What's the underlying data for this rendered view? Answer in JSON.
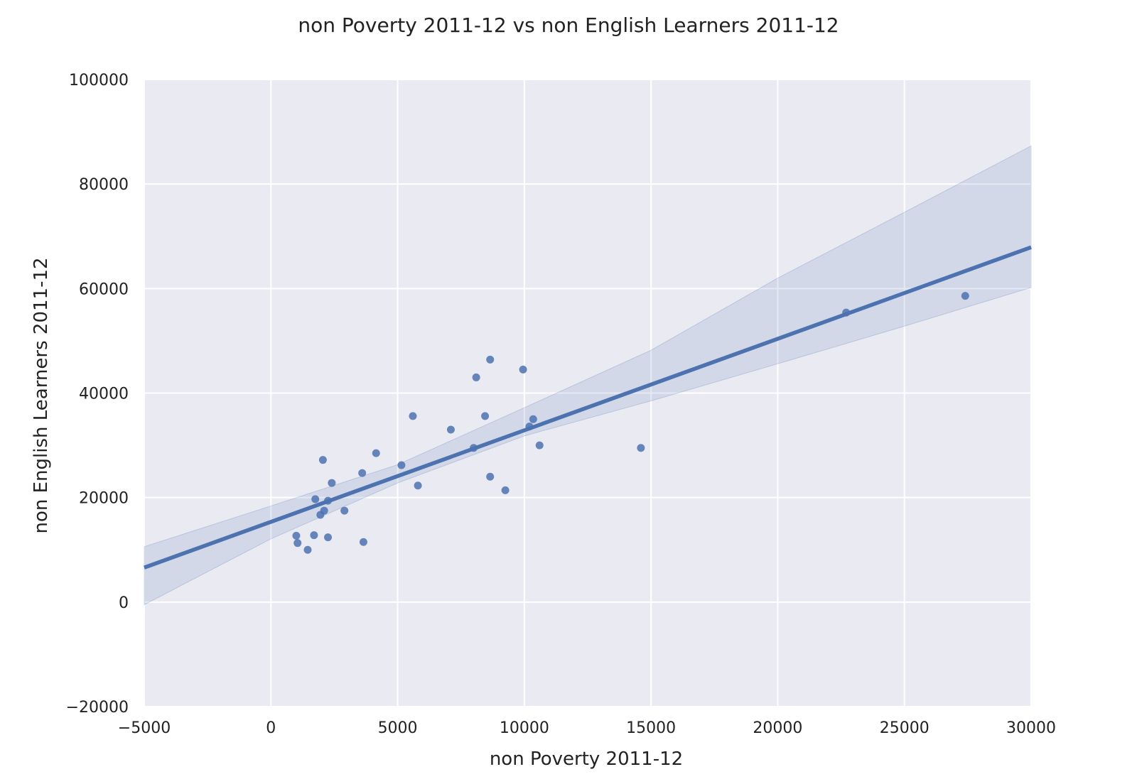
{
  "chart_data": {
    "type": "scatter",
    "title": "non Poverty 2011-12 vs non English Learners 2011-12",
    "xlabel": "non Poverty 2011-12",
    "ylabel": "non English Learners 2011-12",
    "xlim": [
      -5000,
      30000
    ],
    "ylim": [
      -20000,
      100000
    ],
    "xticks": [
      -5000,
      0,
      5000,
      10000,
      15000,
      20000,
      25000,
      30000
    ],
    "yticks": [
      -20000,
      0,
      20000,
      40000,
      60000,
      80000,
      100000
    ],
    "xtick_labels": [
      "−5000",
      "0",
      "5000",
      "10000",
      "15000",
      "20000",
      "25000",
      "30000"
    ],
    "ytick_labels": [
      "−20000",
      "0",
      "20000",
      "40000",
      "60000",
      "80000",
      "100000"
    ],
    "grid": true,
    "legend": "none",
    "colors": {
      "background": "#eaeaf2",
      "grid": "#ffffff",
      "points": "#4c72b0",
      "line": "#4c72b0",
      "band": "#4c72b0"
    },
    "points": [
      {
        "x": 1000,
        "y": 12700
      },
      {
        "x": 1050,
        "y": 11300
      },
      {
        "x": 1450,
        "y": 10000
      },
      {
        "x": 1700,
        "y": 12800
      },
      {
        "x": 1750,
        "y": 19700
      },
      {
        "x": 1950,
        "y": 16700
      },
      {
        "x": 2050,
        "y": 27200
      },
      {
        "x": 2100,
        "y": 17500
      },
      {
        "x": 2250,
        "y": 19400
      },
      {
        "x": 2250,
        "y": 12400
      },
      {
        "x": 2400,
        "y": 22800
      },
      {
        "x": 2900,
        "y": 17500
      },
      {
        "x": 3600,
        "y": 24700
      },
      {
        "x": 3650,
        "y": 11500
      },
      {
        "x": 4150,
        "y": 28500
      },
      {
        "x": 5150,
        "y": 26200
      },
      {
        "x": 5600,
        "y": 35600
      },
      {
        "x": 5800,
        "y": 22300
      },
      {
        "x": 7100,
        "y": 33000
      },
      {
        "x": 8000,
        "y": 29500
      },
      {
        "x": 8100,
        "y": 43000
      },
      {
        "x": 8450,
        "y": 35600
      },
      {
        "x": 8650,
        "y": 46400
      },
      {
        "x": 8650,
        "y": 24000
      },
      {
        "x": 9250,
        "y": 21400
      },
      {
        "x": 9950,
        "y": 44500
      },
      {
        "x": 10200,
        "y": 33600
      },
      {
        "x": 10350,
        "y": 35000
      },
      {
        "x": 10600,
        "y": 30000
      },
      {
        "x": 14600,
        "y": 29500
      },
      {
        "x": 22700,
        "y": 55400
      },
      {
        "x": 27400,
        "y": 58600
      }
    ],
    "regression": {
      "x": [
        -5000,
        30000
      ],
      "y": [
        6600,
        67900
      ]
    },
    "confidence_band": {
      "x": [
        -5000,
        0,
        5000,
        10000,
        15000,
        20000,
        25000,
        30000
      ],
      "lower": [
        -500,
        12100,
        22800,
        31800,
        38500,
        45600,
        52800,
        60200
      ],
      "upper": [
        10600,
        18400,
        26300,
        37200,
        48200,
        62000,
        74600,
        87300
      ]
    }
  }
}
